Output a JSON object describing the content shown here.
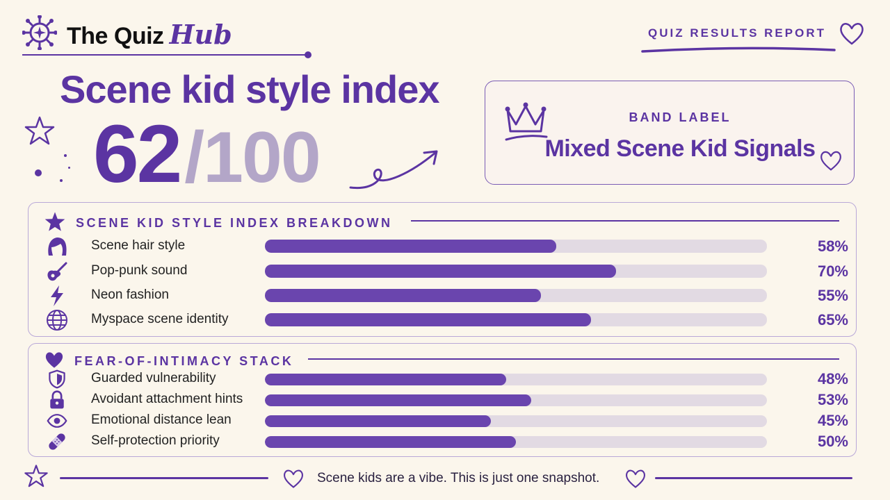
{
  "brand": {
    "name": "The Quiz",
    "accent": "Hub"
  },
  "report_label": "QUIZ RESULTS REPORT",
  "headline": "Scene kid style index",
  "score": {
    "value": "62",
    "max": "/100"
  },
  "band": {
    "label": "BAND LABEL",
    "value": "Mixed Scene Kid Signals"
  },
  "breakdown": {
    "title": "SCENE KID STYLE INDEX BREAKDOWN",
    "rows": [
      {
        "label": "Scene hair style",
        "pct_text": "58%",
        "pct": 58,
        "icon": "hair-icon"
      },
      {
        "label": "Pop-punk sound",
        "pct_text": "70%",
        "pct": 70,
        "icon": "guitar-icon"
      },
      {
        "label": "Neon fashion",
        "pct_text": "55%",
        "pct": 55,
        "icon": "lightning-icon"
      },
      {
        "label": "Myspace scene identity",
        "pct_text": "65%",
        "pct": 65,
        "icon": "globe-icon"
      }
    ]
  },
  "intimacy": {
    "title": "FEAR-OF-INTIMACY STACK",
    "rows": [
      {
        "label": "Guarded vulnerability",
        "pct_text": "48%",
        "pct": 48,
        "icon": "shield-icon"
      },
      {
        "label": "Avoidant attachment hints",
        "pct_text": "53%",
        "pct": 53,
        "icon": "lock-icon"
      },
      {
        "label": "Emotional distance lean",
        "pct_text": "45%",
        "pct": 45,
        "icon": "eye-icon"
      },
      {
        "label": "Self-protection priority",
        "pct_text": "50%",
        "pct": 50,
        "icon": "bandage-icon"
      }
    ]
  },
  "footer": {
    "text": "Scene kids are a vibe. This is just one snapshot."
  },
  "colors": {
    "accent": "#5b34a2",
    "bar_fill": "#6a45ae",
    "bar_track": "#e2dae3",
    "background": "#fbf6ec",
    "score_muted": "#b3a6c8"
  }
}
